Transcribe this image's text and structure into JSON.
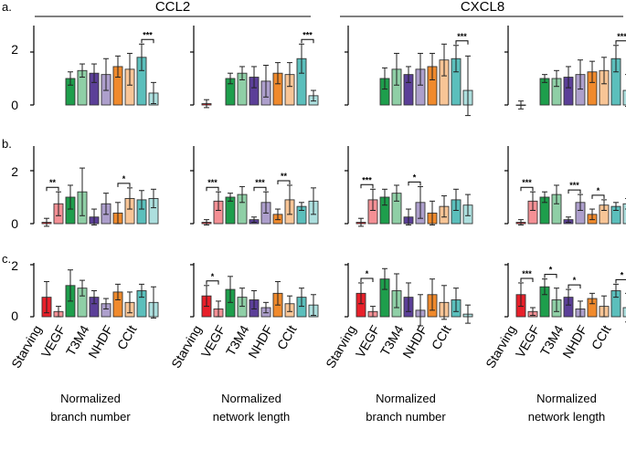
{
  "figure": {
    "panel_letters": [
      "a.",
      "b.",
      "c."
    ],
    "genes": [
      "CCL2",
      "CXCL8"
    ],
    "metric_labels": [
      [
        "Normalized",
        "branch number"
      ],
      [
        "Normalized",
        "network length"
      ],
      [
        "Normalized",
        "branch number"
      ],
      [
        "Normalized",
        "network length"
      ]
    ],
    "categories": [
      "Starving",
      "VEGF",
      "T3M4",
      "NHDF",
      "CCIt"
    ],
    "colors": {
      "Starving": "#e8202a",
      "VEGF": "#1e9e4c",
      "T3M4": "#5b3f98",
      "NHDF": "#f08a2c",
      "CCIt": "#5bbfbc"
    }
  },
  "chart_data": [
    {
      "type": "bar",
      "row": "a",
      "gene": "CCL2",
      "metric": "Normalized branch number",
      "ylim": [
        0,
        3
      ],
      "yticks": [
        0,
        2
      ],
      "categories": [
        "Starving",
        "VEGF",
        "T3M4",
        "NHDF",
        "CCIt"
      ],
      "series": [
        {
          "name": "first",
          "values": [
            null,
            1.0,
            1.2,
            1.45,
            1.8
          ],
          "errors": [
            null,
            0.25,
            0.35,
            0.4,
            0.5
          ]
        },
        {
          "name": "second",
          "values": [
            null,
            1.3,
            1.15,
            1.35,
            0.45
          ],
          "errors": [
            null,
            0.25,
            0.6,
            0.6,
            0.4
          ]
        }
      ],
      "significance": [
        {
          "category": "CCIt",
          "label": "***"
        }
      ]
    },
    {
      "type": "bar",
      "row": "a",
      "gene": "CCL2",
      "metric": "Normalized network length",
      "ylim": [
        0,
        3
      ],
      "yticks": [
        0,
        2
      ],
      "categories": [
        "Starving",
        "VEGF",
        "T3M4",
        "NHDF",
        "CCIt"
      ],
      "series": [
        {
          "name": "first",
          "values": [
            0.05,
            1.0,
            1.05,
            1.2,
            1.75
          ],
          "errors": [
            0.15,
            0.2,
            0.4,
            0.4,
            0.55
          ]
        },
        {
          "name": "second",
          "values": [
            null,
            1.2,
            0.9,
            1.15,
            0.35
          ],
          "errors": [
            null,
            0.25,
            0.6,
            0.45,
            0.2
          ]
        }
      ],
      "significance": [
        {
          "category": "CCIt",
          "label": "***"
        }
      ]
    },
    {
      "type": "bar",
      "row": "a",
      "gene": "CXCL8",
      "metric": "Normalized branch number",
      "ylim": [
        0,
        3
      ],
      "yticks": [
        0,
        2
      ],
      "categories": [
        "Starving",
        "VEGF",
        "T3M4",
        "NHDF",
        "CCIt"
      ],
      "series": [
        {
          "name": "first",
          "values": [
            null,
            1.0,
            1.15,
            1.45,
            1.75
          ],
          "errors": [
            null,
            0.4,
            0.3,
            0.5,
            0.5
          ]
        },
        {
          "name": "second",
          "values": [
            null,
            1.35,
            1.35,
            1.7,
            0.55
          ],
          "errors": [
            null,
            0.6,
            0.6,
            0.6,
            1.3
          ]
        }
      ],
      "significance": [
        {
          "category": "CCIt",
          "label": "***"
        }
      ]
    },
    {
      "type": "bar",
      "row": "a",
      "gene": "CXCL8",
      "metric": "Normalized network length",
      "ylim": [
        0,
        3
      ],
      "yticks": [
        0,
        2
      ],
      "categories": [
        "Starving",
        "VEGF",
        "T3M4",
        "NHDF",
        "CCIt"
      ],
      "series": [
        {
          "name": "first",
          "values": [
            0.0,
            1.0,
            1.05,
            1.25,
            1.75
          ],
          "errors": [
            0.15,
            0.15,
            0.4,
            0.4,
            0.5
          ]
        },
        {
          "name": "second",
          "values": [
            null,
            1.0,
            1.15,
            1.3,
            0.55
          ],
          "errors": [
            null,
            0.3,
            0.55,
            0.5,
            0.6
          ]
        }
      ],
      "significance": [
        {
          "category": "CCIt",
          "label": "***"
        }
      ]
    },
    {
      "type": "bar",
      "row": "b",
      "gene": "CCL2",
      "metric": "Normalized branch number",
      "ylim": [
        0,
        2.2
      ],
      "yticks": [
        0,
        2
      ],
      "categories": [
        "Starving",
        "VEGF",
        "T3M4",
        "NHDF",
        "CCIt"
      ],
      "series": [
        {
          "name": "first",
          "values": [
            0.05,
            1.0,
            0.25,
            0.4,
            0.9
          ],
          "errors": [
            0.15,
            0.45,
            0.3,
            0.4,
            0.35
          ]
        },
        {
          "name": "second",
          "values": [
            0.75,
            1.2,
            0.75,
            0.95,
            0.95
          ],
          "errors": [
            0.45,
            0.9,
            0.4,
            0.4,
            0.35
          ]
        }
      ],
      "significance": [
        {
          "category": "Starving",
          "label": "**"
        },
        {
          "category": "NHDF",
          "label": "*"
        }
      ]
    },
    {
      "type": "bar",
      "row": "b",
      "gene": "CCL2",
      "metric": "Normalized network length",
      "ylim": [
        0,
        2.2
      ],
      "yticks": [
        0,
        2
      ],
      "categories": [
        "Starving",
        "VEGF",
        "T3M4",
        "NHDF",
        "CCIt"
      ],
      "series": [
        {
          "name": "first",
          "values": [
            0.05,
            1.0,
            0.15,
            0.35,
            0.65
          ],
          "errors": [
            0.1,
            0.15,
            0.1,
            0.2,
            0.15
          ]
        },
        {
          "name": "second",
          "values": [
            0.85,
            1.1,
            0.8,
            0.9,
            0.85
          ],
          "errors": [
            0.35,
            0.3,
            0.4,
            0.55,
            0.5
          ]
        }
      ],
      "significance": [
        {
          "category": "Starving",
          "label": "***"
        },
        {
          "category": "T3M4",
          "label": "***"
        },
        {
          "category": "NHDF",
          "label": "**"
        }
      ]
    },
    {
      "type": "bar",
      "row": "b",
      "gene": "CXCL8",
      "metric": "Normalized branch number",
      "ylim": [
        0,
        2.2
      ],
      "yticks": [
        0,
        2
      ],
      "categories": [
        "Starving",
        "VEGF",
        "T3M4",
        "NHDF",
        "CCIt"
      ],
      "series": [
        {
          "name": "first",
          "values": [
            0.05,
            1.0,
            0.25,
            0.4,
            0.9
          ],
          "errors": [
            0.15,
            0.3,
            0.3,
            0.45,
            0.4
          ]
        },
        {
          "name": "second",
          "values": [
            0.9,
            1.15,
            0.8,
            0.65,
            0.7
          ],
          "errors": [
            0.4,
            0.3,
            0.6,
            0.4,
            0.4
          ]
        }
      ],
      "significance": [
        {
          "category": "Starving",
          "label": "***"
        },
        {
          "category": "T3M4",
          "label": "*"
        }
      ]
    },
    {
      "type": "bar",
      "row": "b",
      "gene": "CXCL8",
      "metric": "Normalized network length",
      "ylim": [
        0,
        2.2
      ],
      "yticks": [
        0,
        2
      ],
      "categories": [
        "Starving",
        "VEGF",
        "T3M4",
        "NHDF",
        "CCIt"
      ],
      "series": [
        {
          "name": "first",
          "values": [
            0.05,
            1.0,
            0.15,
            0.35,
            0.65
          ],
          "errors": [
            0.1,
            0.2,
            0.1,
            0.2,
            0.15
          ]
        },
        {
          "name": "second",
          "values": [
            0.85,
            1.1,
            0.8,
            0.7,
            0.75
          ],
          "errors": [
            0.35,
            0.35,
            0.3,
            0.2,
            0.2
          ]
        }
      ],
      "significance": [
        {
          "category": "Starving",
          "label": "***"
        },
        {
          "category": "T3M4",
          "label": "***"
        },
        {
          "category": "NHDF",
          "label": "*"
        }
      ]
    },
    {
      "type": "bar",
      "row": "c",
      "gene": "CCL2",
      "metric": "Normalized branch number",
      "ylim": [
        0,
        2.1
      ],
      "yticks": [
        0,
        2
      ],
      "categories": [
        "Starving",
        "VEGF",
        "T3M4",
        "NHDF",
        "CCIt"
      ],
      "series": [
        {
          "name": "first",
          "values": [
            0.75,
            1.2,
            0.75,
            0.95,
            1.0
          ],
          "errors": [
            0.6,
            0.6,
            0.25,
            0.3,
            0.25
          ]
        },
        {
          "name": "second",
          "values": [
            0.2,
            1.1,
            0.5,
            0.55,
            0.55
          ],
          "errors": [
            0.2,
            0.3,
            0.2,
            0.4,
            0.6
          ]
        }
      ],
      "significance": []
    },
    {
      "type": "bar",
      "row": "c",
      "gene": "CCL2",
      "metric": "Normalized network length",
      "ylim": [
        0,
        2.1
      ],
      "yticks": [
        0,
        2
      ],
      "categories": [
        "Starving",
        "VEGF",
        "T3M4",
        "NHDF",
        "CCIt"
      ],
      "series": [
        {
          "name": "first",
          "values": [
            0.8,
            1.05,
            0.65,
            0.9,
            0.75
          ],
          "errors": [
            0.4,
            0.5,
            0.35,
            0.45,
            0.35
          ]
        },
        {
          "name": "second",
          "values": [
            0.3,
            0.75,
            0.35,
            0.5,
            0.45
          ],
          "errors": [
            0.3,
            0.35,
            0.2,
            0.3,
            0.4
          ]
        }
      ],
      "significance": [
        {
          "category": "Starving",
          "label": "*"
        }
      ]
    },
    {
      "type": "bar",
      "row": "c",
      "gene": "CXCL8",
      "metric": "Normalized branch number",
      "ylim": [
        0,
        2.1
      ],
      "yticks": [
        0,
        2
      ],
      "categories": [
        "Starving",
        "VEGF",
        "T3M4",
        "NHDF",
        "CCIt"
      ],
      "series": [
        {
          "name": "first",
          "values": [
            0.9,
            1.45,
            0.75,
            0.85,
            0.65
          ],
          "errors": [
            0.4,
            0.4,
            0.55,
            0.6,
            0.45
          ]
        },
        {
          "name": "second",
          "values": [
            0.2,
            1.0,
            0.25,
            0.55,
            0.1
          ],
          "errors": [
            0.2,
            0.65,
            0.6,
            0.65,
            0.35
          ]
        }
      ],
      "significance": [
        {
          "category": "Starving",
          "label": "*"
        }
      ]
    },
    {
      "type": "bar",
      "row": "c",
      "gene": "CXCL8",
      "metric": "Normalized network length",
      "ylim": [
        0,
        2.1
      ],
      "yticks": [
        0,
        2
      ],
      "categories": [
        "Starving",
        "VEGF",
        "T3M4",
        "NHDF",
        "CCIt"
      ],
      "series": [
        {
          "name": "first",
          "values": [
            0.85,
            1.15,
            0.75,
            0.7,
            1.0
          ],
          "errors": [
            0.45,
            0.3,
            0.3,
            0.2,
            0.25
          ]
        },
        {
          "name": "second",
          "values": [
            0.2,
            0.65,
            0.3,
            0.4,
            0.35
          ],
          "errors": [
            0.15,
            0.45,
            0.3,
            0.4,
            0.55
          ]
        }
      ],
      "significance": [
        {
          "category": "Starving",
          "label": "***"
        },
        {
          "category": "VEGF",
          "label": "*"
        },
        {
          "category": "T3M4",
          "label": "*"
        },
        {
          "category": "CCIt",
          "label": "*"
        }
      ]
    }
  ]
}
